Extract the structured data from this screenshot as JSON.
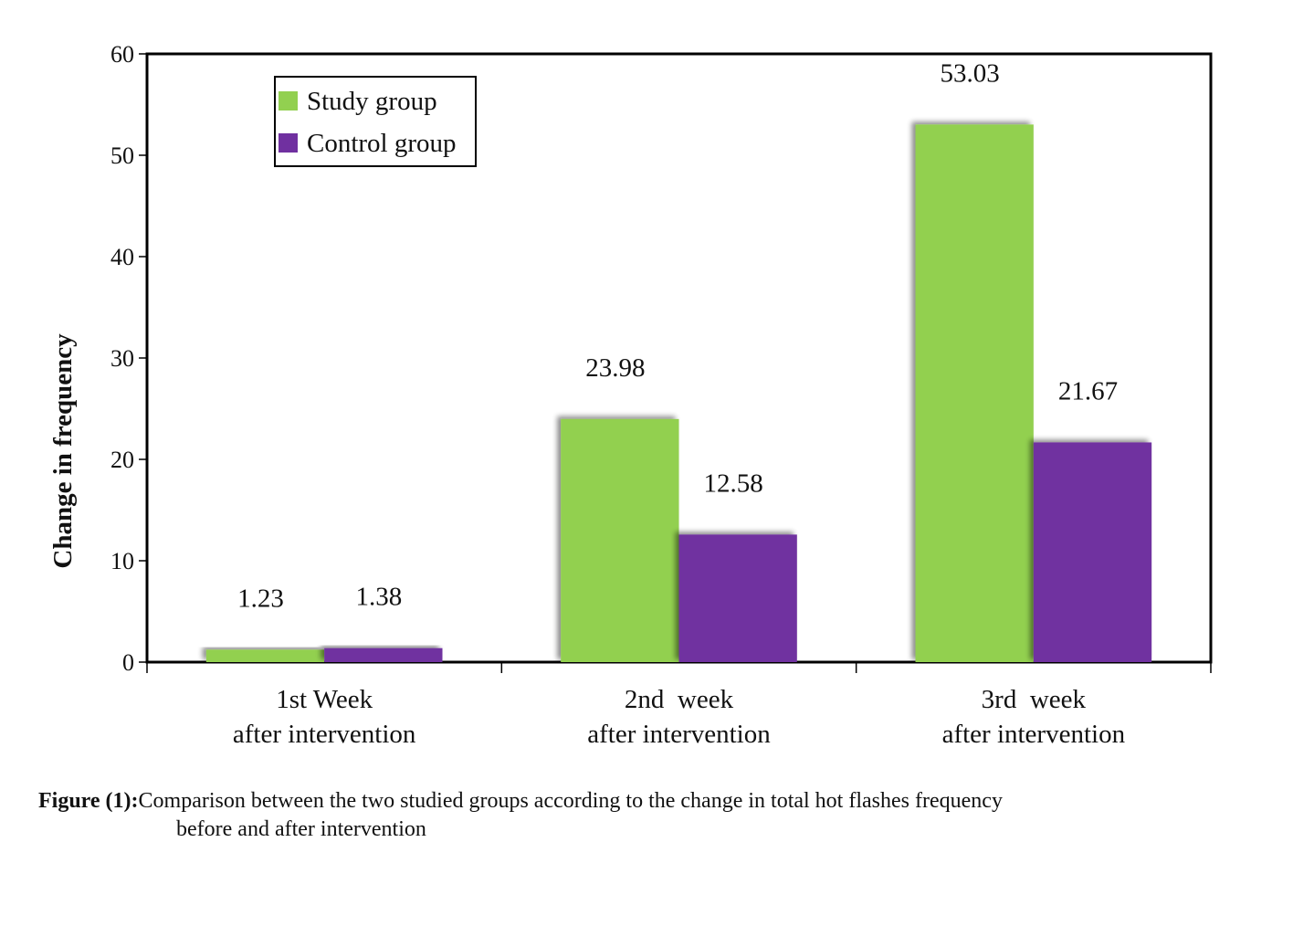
{
  "chart_data": {
    "type": "bar",
    "categories": [
      [
        "1st Week",
        "after intervention"
      ],
      [
        "2nd  week",
        "after intervention"
      ],
      [
        "3rd  week",
        "after intervention"
      ]
    ],
    "series": [
      {
        "name": "Study group",
        "values": [
          1.23,
          23.98,
          53.03
        ],
        "color": "#92d050"
      },
      {
        "name": "Control group",
        "values": [
          1.38,
          12.58,
          21.67
        ],
        "color": "#7030a0"
      }
    ],
    "data_labels": [
      [
        "1.23",
        "23.98",
        "53.03"
      ],
      [
        "1.38",
        "12.58",
        "21.67"
      ]
    ],
    "ylabel": "Change in frequency",
    "xlabel": "",
    "ylim": [
      0,
      60
    ],
    "yticks": [
      0,
      10,
      20,
      30,
      40,
      50,
      60
    ],
    "grid": false,
    "legend_position": "top-left"
  },
  "caption": {
    "label": "Figure (1):",
    "text_line1": "Comparison between the two studied groups according to the change in total hot flashes frequency",
    "text_line2": "before and after intervention"
  }
}
